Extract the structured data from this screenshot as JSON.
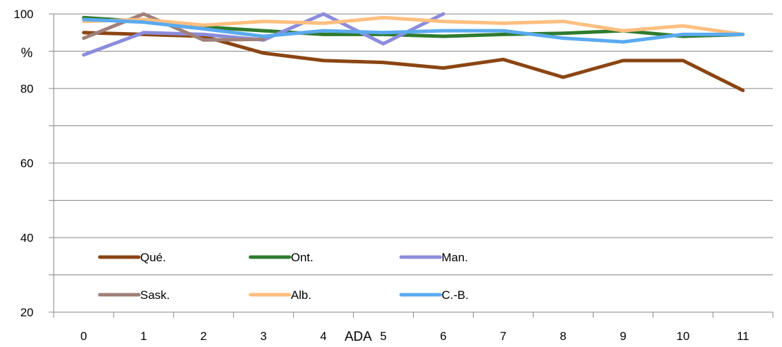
{
  "chart_data": {
    "type": "line",
    "xlabel": "ADA",
    "ylabel": "%",
    "x": [
      0,
      1,
      2,
      3,
      4,
      5,
      6,
      7,
      8,
      9,
      10,
      11
    ],
    "ylim": [
      20,
      100
    ],
    "yticks": [
      "20",
      "40",
      "60",
      "80",
      "100"
    ],
    "grid": true,
    "legend_position": "bottom-left",
    "series": [
      {
        "name": "Qué.",
        "color": "#8B4513",
        "values": [
          95,
          94.5,
          94,
          89.5,
          87.5,
          87,
          85.5,
          87.8,
          83,
          87.5,
          87.5,
          79.5
        ]
      },
      {
        "name": "Ont.",
        "color": "#2E7B2E",
        "values": [
          99,
          98,
          96.5,
          95.5,
          94.5,
          94.5,
          94,
          94.5,
          94.8,
          95.5,
          94,
          94.5
        ]
      },
      {
        "name": "Man.",
        "color": "#8C8CDC",
        "values": [
          89,
          95,
          94.5,
          93,
          100,
          92,
          100,
          null,
          null,
          null,
          null,
          null
        ]
      },
      {
        "name": "Sask.",
        "color": "#A0807A",
        "values": [
          93.5,
          100,
          93,
          93.2,
          null,
          null,
          null,
          null,
          null,
          null,
          null,
          null
        ]
      },
      {
        "name": "Alb.",
        "color": "#FFBF7F",
        "values": [
          98,
          98.5,
          97,
          98,
          97.5,
          99,
          98,
          97.5,
          98,
          95.5,
          96.8,
          94.5
        ]
      },
      {
        "name": "C.-B.",
        "color": "#5AAAF0",
        "values": [
          98.5,
          97.8,
          96,
          94,
          95.5,
          95,
          95.5,
          95.5,
          93.5,
          92.5,
          94.5,
          94.5
        ]
      }
    ]
  }
}
